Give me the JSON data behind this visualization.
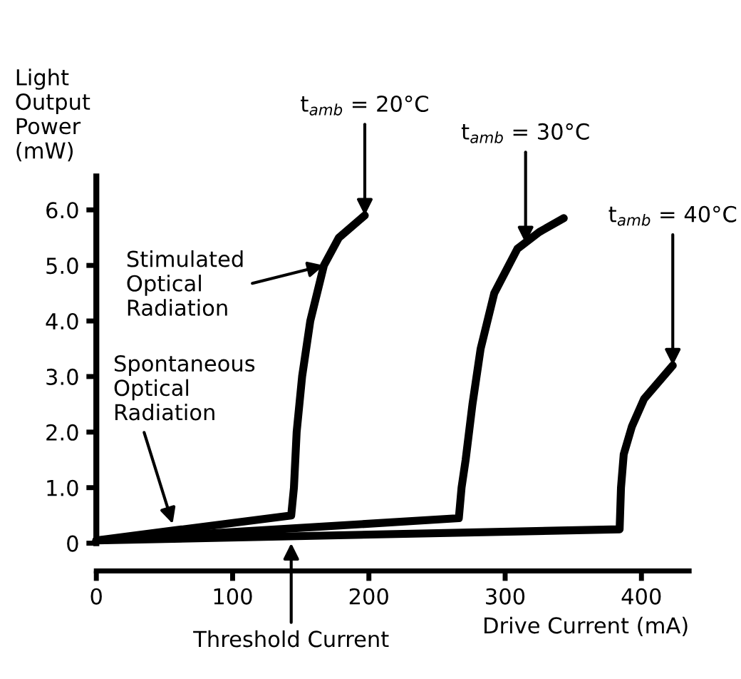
{
  "chart_data": {
    "type": "line",
    "xlabel": "Drive Current (mA)",
    "ylabel": "Light Output Power (mW)",
    "xlim": [
      0,
      435
    ],
    "xticks": [
      0,
      100,
      200,
      300,
      400
    ],
    "ylim": [
      0,
      6.6
    ],
    "yticks": [
      0,
      {
        "value": 1,
        "label": "1.0"
      },
      {
        "value": 2,
        "label": "2.0"
      },
      {
        "value": 3,
        "label": "3.0"
      },
      {
        "value": 4,
        "label": "4.0"
      },
      {
        "value": 5,
        "label": "5.0"
      },
      {
        "value": 6,
        "label": "6.0"
      }
    ],
    "grid": false,
    "legend": false,
    "marker": "none",
    "line_style": "solid",
    "series": [
      {
        "color": "#000000",
        "x": [
          0,
          143,
          145,
          147,
          151,
          157,
          167,
          178,
          197
        ],
        "values": [
          0.05,
          0.5,
          1.0,
          2.0,
          3.0,
          4.0,
          5.0,
          5.5,
          5.9
        ]
      },
      {
        "color": "#000000",
        "x": [
          0,
          266,
          268,
          271,
          276,
          282,
          292,
          309,
          325,
          343
        ],
        "values": [
          0.05,
          0.45,
          1.0,
          1.5,
          2.5,
          3.5,
          4.5,
          5.3,
          5.6,
          5.85
        ]
      },
      {
        "color": "#000000",
        "x": [
          0,
          384,
          385,
          387,
          393,
          402,
          423
        ],
        "values": [
          0.05,
          0.25,
          1.0,
          1.6,
          2.1,
          2.6,
          3.2
        ]
      }
    ],
    "annotations": [
      {
        "text": "t$_{amb}$ = 20°C",
        "x": 197,
        "y": 5.9
      },
      {
        "text": "t$_{amb}$ = 30°C",
        "x": 315,
        "y": 5.4
      },
      {
        "text": "t$_{amb}$ = 40°C",
        "x": 423,
        "y": 3.2
      },
      {
        "text": "Stimulated\nOptical\nRadiation",
        "x": 167,
        "y": 5.0
      },
      {
        "text": "Spontaneous\nOptical\nRadiation",
        "x": 56,
        "y": 0.35
      },
      {
        "text": "Threshold Current",
        "x": 143,
        "y": 0
      }
    ]
  }
}
